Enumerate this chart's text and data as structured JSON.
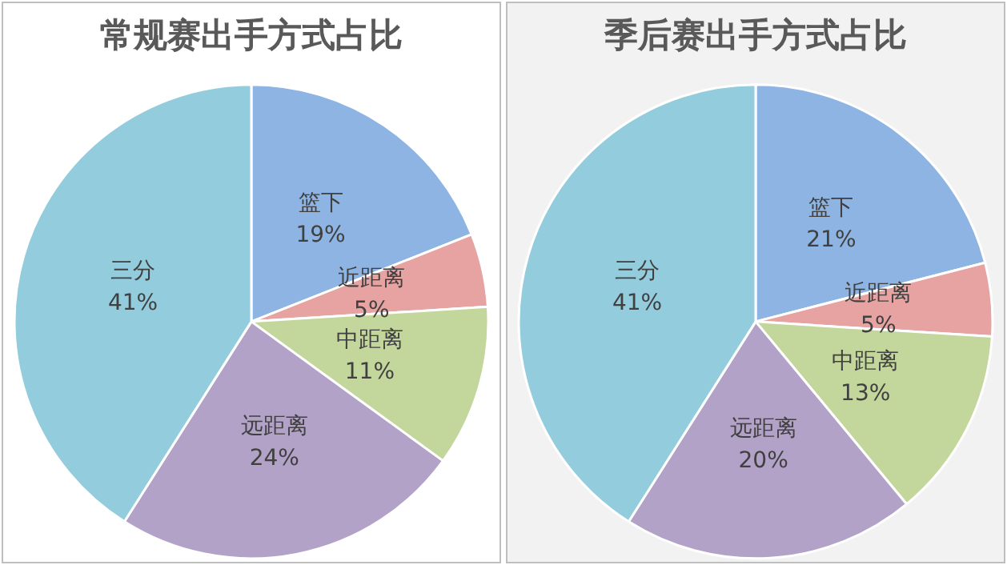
{
  "chart_data": [
    {
      "type": "pie",
      "title": "常规赛出手方式占比",
      "categories": [
        "篮下",
        "近距离",
        "中距离",
        "远距离",
        "三分"
      ],
      "values": [
        19,
        5,
        11,
        24,
        41
      ],
      "value_labels": [
        "19%",
        "5%",
        "11%",
        "24%",
        "41%"
      ],
      "colors": [
        "#8eb4e3",
        "#e6a3a1",
        "#c3d69b",
        "#b3a2c7",
        "#93cddd"
      ]
    },
    {
      "type": "pie",
      "title": "季后赛出手方式占比",
      "categories": [
        "篮下",
        "近距离",
        "中距离",
        "远距离",
        "三分"
      ],
      "values": [
        21,
        5,
        13,
        20,
        41
      ],
      "value_labels": [
        "21%",
        "5%",
        "13%",
        "20%",
        "41%"
      ],
      "colors": [
        "#8eb4e3",
        "#e6a3a1",
        "#c3d69b",
        "#b3a2c7",
        "#93cddd"
      ]
    }
  ]
}
